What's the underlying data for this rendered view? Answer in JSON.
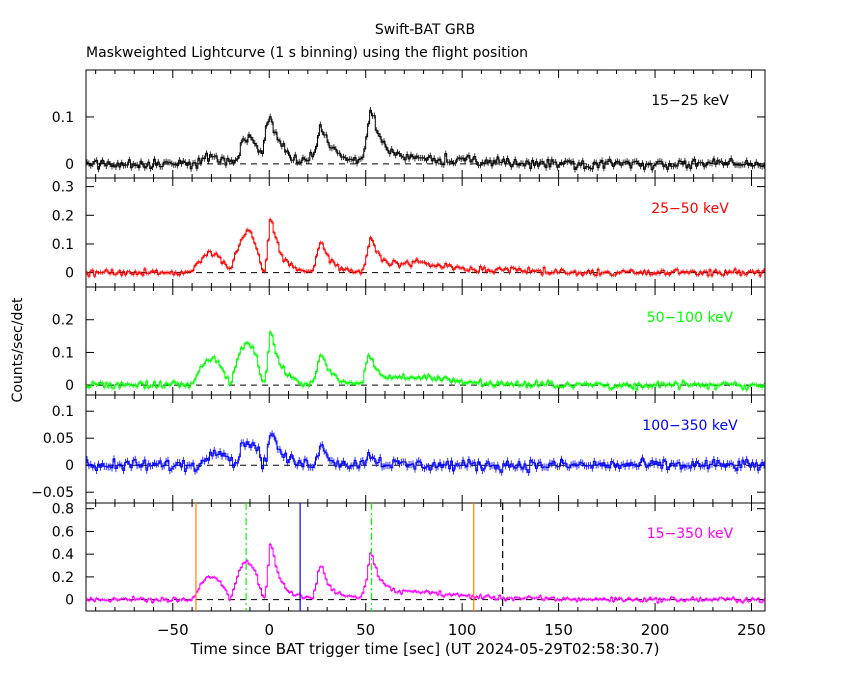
{
  "chart_data": {
    "type": "line",
    "title": "Swift-BAT GRB",
    "subtitle": "Maskweighted Lightcurve (1 s binning) using the flight position",
    "xlabel": "Time since BAT trigger time [sec] (UT 2024-05-29T02:58:30.7)",
    "ylabel": "Counts/sec/det",
    "xlim": [
      -95,
      257
    ],
    "x_ticks": [
      -50,
      0,
      50,
      100,
      150,
      200,
      250
    ],
    "x_tick_labels": [
      "−50",
      "0",
      "50",
      "100",
      "150",
      "200",
      "250"
    ],
    "grid": false,
    "colors": {
      "band1": "#000000",
      "band2": "#ff0000",
      "band3": "#00ff00",
      "band4": "#0000ff",
      "band5": "#ff00ff",
      "orange_marker": "#ff8000",
      "green_marker": "#00ff00",
      "blue_marker": "#0000ff",
      "black_marker": "#000000"
    },
    "panels": [
      {
        "label": "15−25 keV",
        "color": "#000000",
        "ylim": [
          -0.03,
          0.2
        ],
        "y_ticks": [
          0,
          0.1
        ],
        "y_tick_labels": [
          "0",
          "0.1"
        ],
        "noise": 0.011,
        "pulses": [
          {
            "t0": -38,
            "t1": -18,
            "amp": 0.015
          },
          {
            "t0": -18,
            "t1": -3,
            "amp": 0.055
          },
          {
            "t0": -3,
            "t1": 12,
            "amp": 0.02
          },
          {
            "t0": 12,
            "t1": 48,
            "amp": 0.012
          }
        ],
        "peaks": [
          {
            "t": 0,
            "amp": 0.09,
            "rise": 2,
            "decay": 5
          },
          {
            "t": 27,
            "amp": 0.07,
            "rise": 2,
            "decay": 5
          },
          {
            "t": 53,
            "amp": 0.11,
            "rise": 2,
            "decay": 6
          },
          {
            "t": 80,
            "amp": 0.012,
            "rise": 15,
            "decay": 30
          }
        ]
      },
      {
        "label": "25−50 keV",
        "color": "#ff0000",
        "ylim": [
          -0.05,
          0.33
        ],
        "y_ticks": [
          0,
          0.1,
          0.2,
          0.3
        ],
        "y_tick_labels": [
          "0",
          "0.1",
          "0.2",
          "0.3"
        ],
        "noise": 0.012,
        "pulses": [
          {
            "t0": -40,
            "t1": -20,
            "amp": 0.07
          },
          {
            "t0": -20,
            "t1": -3,
            "amp": 0.14
          }
        ],
        "peaks": [
          {
            "t": 1,
            "amp": 0.19,
            "rise": 1.5,
            "decay": 5
          },
          {
            "t": 27,
            "amp": 0.11,
            "rise": 2,
            "decay": 5
          },
          {
            "t": 53,
            "amp": 0.11,
            "rise": 2,
            "decay": 5
          },
          {
            "t": 80,
            "amp": 0.035,
            "rise": 15,
            "decay": 28
          }
        ]
      },
      {
        "label": "50−100 keV",
        "color": "#00ff00",
        "ylim": [
          -0.03,
          0.3
        ],
        "y_ticks": [
          0,
          0.1,
          0.2
        ],
        "y_tick_labels": [
          "0",
          "0.1",
          "0.2"
        ],
        "noise": 0.011,
        "pulses": [
          {
            "t0": -40,
            "t1": -20,
            "amp": 0.08
          },
          {
            "t0": -20,
            "t1": -3,
            "amp": 0.13
          }
        ],
        "peaks": [
          {
            "t": 1,
            "amp": 0.17,
            "rise": 1.5,
            "decay": 5
          },
          {
            "t": 27,
            "amp": 0.1,
            "rise": 2,
            "decay": 5
          },
          {
            "t": 52,
            "amp": 0.09,
            "rise": 2,
            "decay": 5
          },
          {
            "t": 80,
            "amp": 0.025,
            "rise": 15,
            "decay": 25
          }
        ]
      },
      {
        "label": "100−350 keV",
        "color": "#0000ff",
        "ylim": [
          -0.07,
          0.13
        ],
        "y_ticks": [
          -0.05,
          0,
          0.05,
          0.1
        ],
        "y_tick_labels": [
          "−0.05",
          "0",
          "0.05",
          "0.1"
        ],
        "noise": 0.011,
        "pulses": [
          {
            "t0": -35,
            "t1": -18,
            "amp": 0.03
          },
          {
            "t0": -18,
            "t1": -3,
            "amp": 0.045
          }
        ],
        "peaks": [
          {
            "t": 1,
            "amp": 0.065,
            "rise": 1.5,
            "decay": 5
          },
          {
            "t": 27,
            "amp": 0.035,
            "rise": 2,
            "decay": 5
          },
          {
            "t": 52,
            "amp": 0.02,
            "rise": 2,
            "decay": 5
          }
        ]
      },
      {
        "label": "15−350 keV",
        "color": "#ff00ff",
        "ylim": [
          -0.1,
          0.85
        ],
        "y_ticks": [
          0,
          0.2,
          0.4,
          0.6,
          0.8
        ],
        "y_tick_labels": [
          "0",
          "0.2",
          "0.4",
          "0.6",
          "0.8"
        ],
        "noise": 0.022,
        "pulses": [
          {
            "t0": -40,
            "t1": -20,
            "amp": 0.2
          },
          {
            "t0": -20,
            "t1": -3,
            "amp": 0.33
          }
        ],
        "peaks": [
          {
            "t": 1,
            "amp": 0.5,
            "rise": 1.5,
            "decay": 5
          },
          {
            "t": 27,
            "amp": 0.3,
            "rise": 2,
            "decay": 5
          },
          {
            "t": 53,
            "amp": 0.4,
            "rise": 2,
            "decay": 5
          },
          {
            "t": 80,
            "amp": 0.07,
            "rise": 15,
            "decay": 28
          }
        ]
      }
    ],
    "markers": [
      {
        "x": -38,
        "style": "solid",
        "color": "#ff8000"
      },
      {
        "x": -12,
        "style": "dashdot",
        "color": "#00ff00"
      },
      {
        "x": 16,
        "style": "solid",
        "color": "#0000ff"
      },
      {
        "x": 53,
        "style": "dashdot",
        "color": "#00ff00"
      },
      {
        "x": 106,
        "style": "solid",
        "color": "#ff8000"
      },
      {
        "x": 121,
        "style": "dashed",
        "color": "#000000"
      }
    ]
  }
}
